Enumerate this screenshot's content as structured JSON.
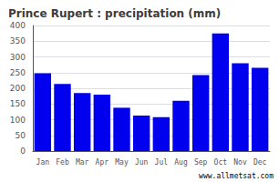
{
  "chart_data": {
    "type": "bar",
    "title": "Prince Rupert : precipitation (mm)",
    "categories": [
      "Jan",
      "Feb",
      "Mar",
      "Apr",
      "May",
      "Jun",
      "Jul",
      "Aug",
      "Sep",
      "Oct",
      "Nov",
      "Dec"
    ],
    "values": [
      248,
      214,
      185,
      180,
      138,
      113,
      108,
      160,
      242,
      375,
      280,
      265
    ],
    "color": "#0000ee",
    "ylim": [
      0,
      400
    ],
    "yticks": [
      0,
      50,
      100,
      150,
      200,
      250,
      300,
      350,
      400
    ],
    "grid": true,
    "annotations": [
      {
        "text": "www.allmetsat.com"
      }
    ]
  }
}
